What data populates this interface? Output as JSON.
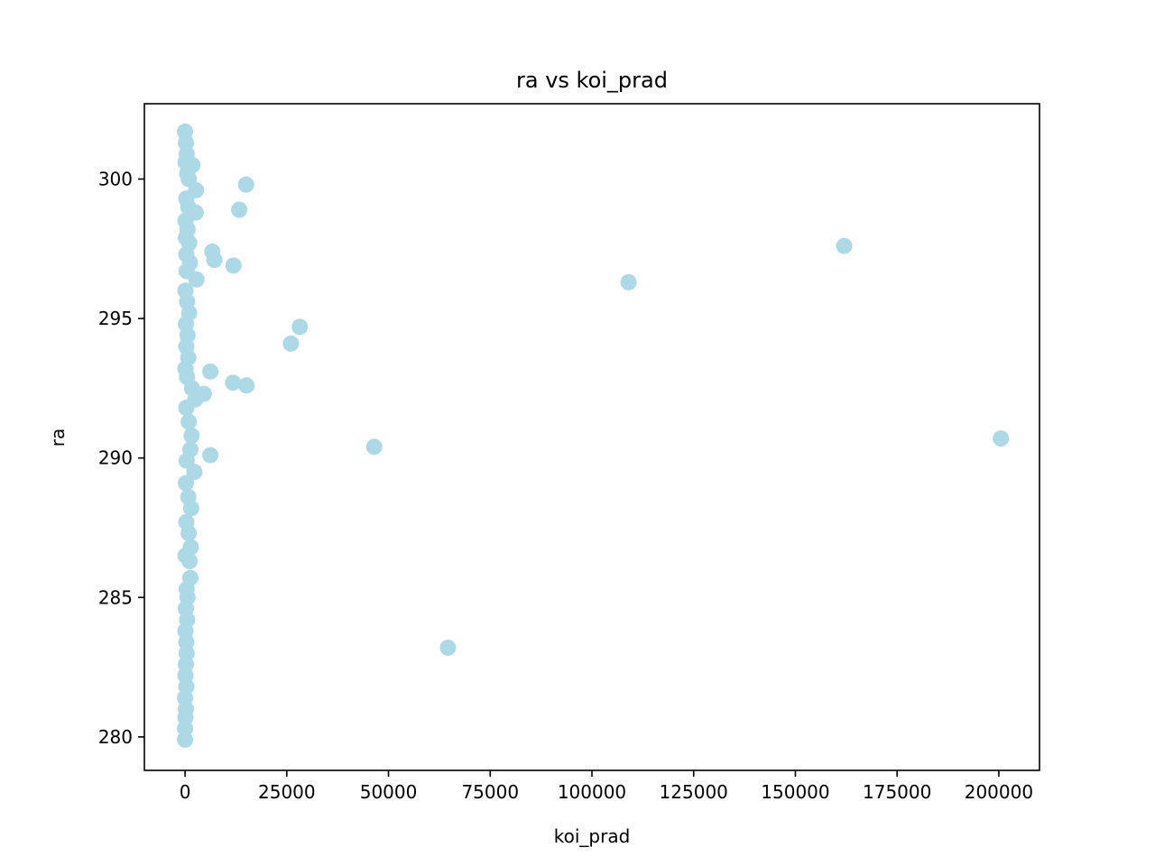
{
  "chart_data": {
    "type": "scatter",
    "title": "ra vs koi_prad",
    "xlabel": "koi_prad",
    "ylabel": "ra",
    "xlim": [
      -10000,
      210000
    ],
    "ylim": [
      278.8,
      302.7
    ],
    "xticks": [
      0,
      25000,
      50000,
      75000,
      100000,
      125000,
      150000,
      175000,
      200000
    ],
    "xtick_labels": [
      "0",
      "25000",
      "50000",
      "75000",
      "100000",
      "125000",
      "150000",
      "175000",
      "200000"
    ],
    "yticks": [
      280,
      285,
      290,
      295,
      300
    ],
    "ytick_labels": [
      "280",
      "285",
      "290",
      "295",
      "300"
    ],
    "grid": false,
    "marker_color": "#add8e6",
    "points": [
      {
        "x": 0,
        "y": 301.7
      },
      {
        "x": 200,
        "y": 301.3
      },
      {
        "x": 400,
        "y": 300.9
      },
      {
        "x": 100,
        "y": 300.6
      },
      {
        "x": 1800,
        "y": 300.5
      },
      {
        "x": 500,
        "y": 300.2
      },
      {
        "x": 900,
        "y": 300.0
      },
      {
        "x": 2700,
        "y": 299.6
      },
      {
        "x": 300,
        "y": 299.3
      },
      {
        "x": 800,
        "y": 299.0
      },
      {
        "x": 2600,
        "y": 298.8
      },
      {
        "x": 100,
        "y": 298.5
      },
      {
        "x": 600,
        "y": 298.2
      },
      {
        "x": 200,
        "y": 297.9
      },
      {
        "x": 1000,
        "y": 297.7
      },
      {
        "x": 300,
        "y": 297.3
      },
      {
        "x": 1200,
        "y": 297.0
      },
      {
        "x": 400,
        "y": 296.7
      },
      {
        "x": 2800,
        "y": 296.4
      },
      {
        "x": 100,
        "y": 296.0
      },
      {
        "x": 500,
        "y": 295.6
      },
      {
        "x": 1000,
        "y": 295.2
      },
      {
        "x": 200,
        "y": 294.8
      },
      {
        "x": 600,
        "y": 294.4
      },
      {
        "x": 300,
        "y": 294.0
      },
      {
        "x": 800,
        "y": 293.6
      },
      {
        "x": 100,
        "y": 293.2
      },
      {
        "x": 500,
        "y": 292.9
      },
      {
        "x": 1700,
        "y": 292.5
      },
      {
        "x": 4600,
        "y": 292.3
      },
      {
        "x": 2500,
        "y": 292.1
      },
      {
        "x": 300,
        "y": 291.8
      },
      {
        "x": 900,
        "y": 291.3
      },
      {
        "x": 1600,
        "y": 290.8
      },
      {
        "x": 1300,
        "y": 290.3
      },
      {
        "x": 400,
        "y": 289.9
      },
      {
        "x": 2300,
        "y": 289.5
      },
      {
        "x": 200,
        "y": 289.1
      },
      {
        "x": 800,
        "y": 288.6
      },
      {
        "x": 1500,
        "y": 288.2
      },
      {
        "x": 300,
        "y": 287.7
      },
      {
        "x": 900,
        "y": 287.3
      },
      {
        "x": 1400,
        "y": 286.8
      },
      {
        "x": 100,
        "y": 286.5
      },
      {
        "x": 1100,
        "y": 286.3
      },
      {
        "x": 1300,
        "y": 285.7
      },
      {
        "x": 400,
        "y": 285.3
      },
      {
        "x": 600,
        "y": 285.0
      },
      {
        "x": 200,
        "y": 284.6
      },
      {
        "x": 500,
        "y": 284.2
      },
      {
        "x": 100,
        "y": 283.8
      },
      {
        "x": 300,
        "y": 283.4
      },
      {
        "x": 400,
        "y": 283.0
      },
      {
        "x": 200,
        "y": 282.6
      },
      {
        "x": 100,
        "y": 282.2
      },
      {
        "x": 300,
        "y": 281.8
      },
      {
        "x": 0,
        "y": 281.4
      },
      {
        "x": 200,
        "y": 281.0
      },
      {
        "x": 100,
        "y": 280.7
      },
      {
        "x": 0,
        "y": 280.3
      },
      {
        "x": 0,
        "y": 279.9
      },
      {
        "x": 15000,
        "y": 299.8
      },
      {
        "x": 13300,
        "y": 298.9
      },
      {
        "x": 6700,
        "y": 297.4
      },
      {
        "x": 7200,
        "y": 297.1
      },
      {
        "x": 11900,
        "y": 296.9
      },
      {
        "x": 28200,
        "y": 294.7
      },
      {
        "x": 26000,
        "y": 294.1
      },
      {
        "x": 6200,
        "y": 293.1
      },
      {
        "x": 11800,
        "y": 292.7
      },
      {
        "x": 15100,
        "y": 292.6
      },
      {
        "x": 6200,
        "y": 290.1
      },
      {
        "x": 46500,
        "y": 290.4
      },
      {
        "x": 64600,
        "y": 283.2
      },
      {
        "x": 109000,
        "y": 296.3
      },
      {
        "x": 162000,
        "y": 297.6
      },
      {
        "x": 200500,
        "y": 290.7
      }
    ]
  }
}
